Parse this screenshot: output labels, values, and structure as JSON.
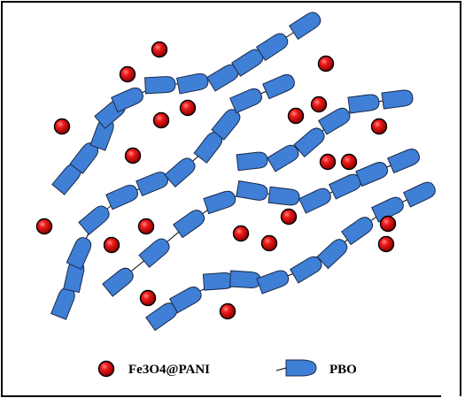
{
  "colors": {
    "particle_fill": "#e01010",
    "particle_stroke": "#000000",
    "segment_fill": "#3f7fd6",
    "segment_stroke": "#1a2a4a",
    "frame": "#000000"
  },
  "icons": {
    "particle": "red-sphere-icon",
    "segment": "blue-bullet-segment-icon"
  },
  "legend": {
    "particle_label": "Fe3O4@PANI",
    "segment_label": "PBO"
  }
}
